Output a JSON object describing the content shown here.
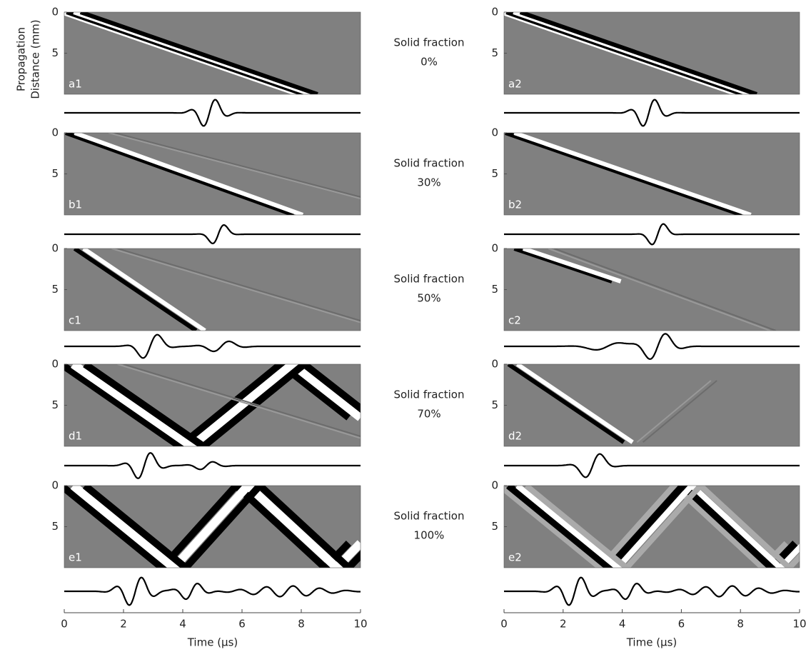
{
  "y_label_lines": [
    "Propagation",
    "Distance (mm)"
  ],
  "x_label": "Time (µs)",
  "xlim": [
    0,
    10
  ],
  "xticks": [
    0,
    2,
    4,
    6,
    8,
    10
  ],
  "ylim": [
    0,
    10
  ],
  "yticks": [
    0,
    5
  ],
  "rows": [
    {
      "caption": [
        "Solid fraction",
        "0%"
      ],
      "panels": [
        "a1",
        "a2"
      ]
    },
    {
      "caption": [
        "Solid fraction",
        "30%"
      ],
      "panels": [
        "b1",
        "b2"
      ]
    },
    {
      "caption": [
        "Solid fraction",
        "50%"
      ],
      "panels": [
        "c1",
        "c2"
      ]
    },
    {
      "caption": [
        "Solid fraction",
        "70%"
      ],
      "panels": [
        "d1",
        "d2"
      ]
    },
    {
      "caption": [
        "Solid fraction",
        "100%"
      ],
      "panels": [
        "e1",
        "e2"
      ]
    }
  ]
}
